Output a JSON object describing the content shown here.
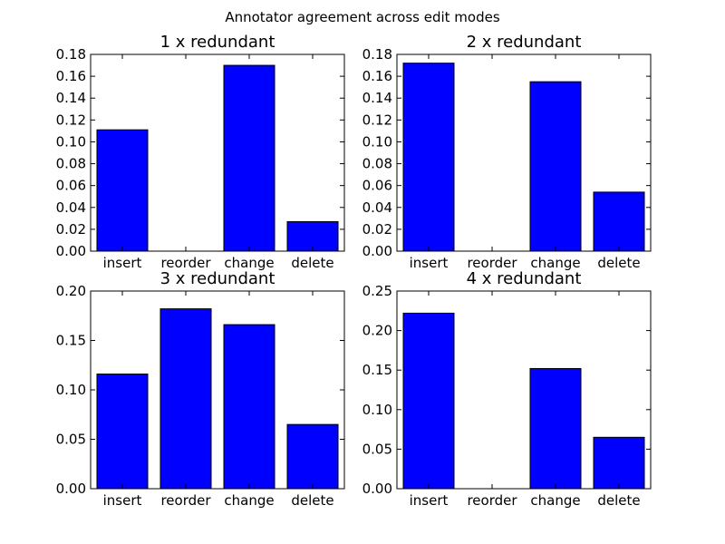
{
  "figure": {
    "suptitle": "Annotator agreement across edit modes",
    "bar_color": "#0000ff"
  },
  "chart_data": [
    {
      "type": "bar",
      "title": "1 x redundant",
      "categories": [
        "insert",
        "reorder",
        "change",
        "delete"
      ],
      "values": [
        0.111,
        0.0,
        0.17,
        0.027
      ],
      "ylim": [
        0,
        0.18
      ],
      "yticks": [
        "0.00",
        "0.02",
        "0.04",
        "0.06",
        "0.08",
        "0.10",
        "0.12",
        "0.14",
        "0.16",
        "0.18"
      ],
      "grid": false
    },
    {
      "type": "bar",
      "title": "2 x redundant",
      "categories": [
        "insert",
        "reorder",
        "change",
        "delete"
      ],
      "values": [
        0.172,
        0.0,
        0.155,
        0.054
      ],
      "ylim": [
        0,
        0.18
      ],
      "yticks": [
        "0.00",
        "0.02",
        "0.04",
        "0.06",
        "0.08",
        "0.10",
        "0.12",
        "0.14",
        "0.16",
        "0.18"
      ],
      "grid": false
    },
    {
      "type": "bar",
      "title": "3 x redundant",
      "categories": [
        "insert",
        "reorder",
        "change",
        "delete"
      ],
      "values": [
        0.116,
        0.182,
        0.166,
        0.065
      ],
      "ylim": [
        0,
        0.2
      ],
      "yticks": [
        "0.00",
        "0.05",
        "0.10",
        "0.15",
        "0.20"
      ],
      "grid": false
    },
    {
      "type": "bar",
      "title": "4 x redundant",
      "categories": [
        "insert",
        "reorder",
        "change",
        "delete"
      ],
      "values": [
        0.222,
        0.0,
        0.152,
        0.065
      ],
      "ylim": [
        0,
        0.25
      ],
      "yticks": [
        "0.00",
        "0.05",
        "0.10",
        "0.15",
        "0.20",
        "0.25"
      ],
      "grid": false
    }
  ]
}
